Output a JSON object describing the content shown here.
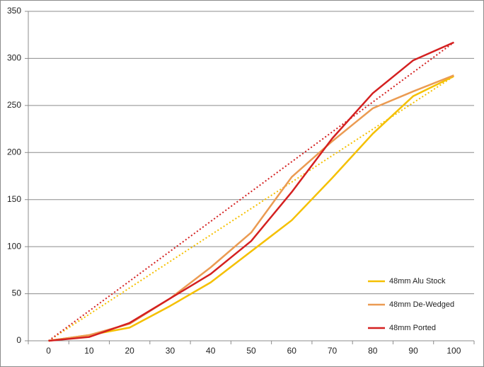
{
  "chart_data": {
    "type": "line",
    "categories": [
      "0",
      "10",
      "20",
      "30",
      "40",
      "50",
      "60",
      "70",
      "80",
      "90",
      "100"
    ],
    "series": [
      {
        "name": "48mm Alu Stock",
        "color": "#f5c000",
        "values": [
          0,
          6,
          14,
          37,
          62,
          95,
          128,
          173,
          220,
          260,
          281
        ]
      },
      {
        "name": "48mm De-Wedged",
        "color": "#eb9b52",
        "values": [
          0,
          6,
          18,
          45,
          78,
          115,
          174,
          212,
          247,
          265,
          282
        ]
      },
      {
        "name": "48mm Ported",
        "color": "#d42020",
        "values": [
          0,
          4,
          19,
          45,
          71,
          106,
          158,
          215,
          263,
          298,
          317
        ]
      }
    ],
    "trendlines": [
      {
        "color": "#f5c000",
        "x": [
          0,
          100
        ],
        "values": [
          0,
          281
        ]
      },
      {
        "color": "#d42020",
        "x": [
          0,
          100
        ],
        "values": [
          0,
          317
        ]
      }
    ],
    "ylim": [
      0,
      350
    ],
    "yticks": [
      0,
      50,
      100,
      150,
      200,
      250,
      300,
      350
    ],
    "grid": true,
    "legend": "lower right"
  }
}
